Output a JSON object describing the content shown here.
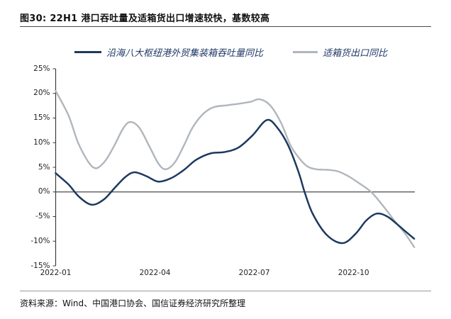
{
  "figure": {
    "title": "图30: 22H1 港口吞吐量及适箱货出口增速较快，基数较高",
    "source": "资料来源：Wind、中国港口协会、国信证券经济研究所整理"
  },
  "chart_data": {
    "type": "line",
    "title": "22H1 港口吞吐量及适箱货出口增速较快，基数较高",
    "legend_position": "top",
    "grid": false,
    "x_axis": {
      "unit": "months since 2022-01",
      "range": [
        0,
        10.85
      ],
      "ticks": [
        {
          "label": "2022-01",
          "m": 0
        },
        {
          "label": "2022-04",
          "m": 3
        },
        {
          "label": "2022-07",
          "m": 6
        },
        {
          "label": "2022-10",
          "m": 9
        }
      ]
    },
    "y_axis": {
      "range": [
        -15,
        25
      ],
      "ticks": [
        {
          "label": "25%",
          "v": 25
        },
        {
          "label": "20%",
          "v": 20
        },
        {
          "label": "15%",
          "v": 15
        },
        {
          "label": "10%",
          "v": 10
        },
        {
          "label": "5%",
          "v": 5
        },
        {
          "label": "0%",
          "v": 0
        },
        {
          "label": "-5%",
          "v": -5
        },
        {
          "label": "-10%",
          "v": -10
        },
        {
          "label": "-15%",
          "v": -15
        }
      ]
    },
    "series": [
      {
        "name": "沿海八大枢纽港外贸集装箱吞吐量同比",
        "color": "#1c3a5f",
        "stroke_width": 2.5,
        "points": [
          [
            0,
            3.8
          ],
          [
            0.39,
            1.5
          ],
          [
            0.71,
            -1.0
          ],
          [
            1.09,
            -2.6
          ],
          [
            1.46,
            -1.5
          ],
          [
            1.78,
            0.8
          ],
          [
            2.1,
            3.0
          ],
          [
            2.38,
            4.0
          ],
          [
            2.74,
            3.2
          ],
          [
            3.1,
            2.1
          ],
          [
            3.49,
            2.8
          ],
          [
            3.88,
            4.5
          ],
          [
            4.24,
            6.5
          ],
          [
            4.67,
            7.8
          ],
          [
            5.1,
            8.1
          ],
          [
            5.52,
            9.0
          ],
          [
            5.95,
            11.5
          ],
          [
            6.38,
            14.6
          ],
          [
            6.7,
            13.0
          ],
          [
            7.02,
            9.5
          ],
          [
            7.34,
            4.0
          ],
          [
            7.52,
            0.0
          ],
          [
            7.77,
            -4.5
          ],
          [
            8.2,
            -8.8
          ],
          [
            8.67,
            -10.4
          ],
          [
            9.06,
            -8.5
          ],
          [
            9.38,
            -5.8
          ],
          [
            9.7,
            -4.4
          ],
          [
            10.02,
            -5.0
          ],
          [
            10.34,
            -6.7
          ],
          [
            10.6,
            -8.2
          ],
          [
            10.83,
            -9.5
          ]
        ]
      },
      {
        "name": "适箱货出口同比",
        "color": "#b0b6bc",
        "stroke_width": 2.4,
        "points": [
          [
            0,
            20.5
          ],
          [
            0.39,
            15.5
          ],
          [
            0.71,
            9.5
          ],
          [
            1.13,
            5.0
          ],
          [
            1.46,
            6.0
          ],
          [
            1.78,
            9.5
          ],
          [
            2.03,
            12.8
          ],
          [
            2.25,
            14.2
          ],
          [
            2.53,
            13.0
          ],
          [
            2.85,
            9.0
          ],
          [
            3.1,
            5.8
          ],
          [
            3.32,
            4.6
          ],
          [
            3.6,
            6.0
          ],
          [
            3.88,
            9.5
          ],
          [
            4.13,
            13.0
          ],
          [
            4.45,
            15.8
          ],
          [
            4.77,
            17.2
          ],
          [
            5.2,
            17.6
          ],
          [
            5.63,
            18.0
          ],
          [
            5.89,
            18.3
          ],
          [
            6.17,
            18.8
          ],
          [
            6.49,
            17.5
          ],
          [
            6.81,
            14.0
          ],
          [
            7.09,
            9.5
          ],
          [
            7.34,
            7.0
          ],
          [
            7.6,
            5.2
          ],
          [
            7.88,
            4.6
          ],
          [
            8.2,
            4.5
          ],
          [
            8.52,
            4.2
          ],
          [
            8.84,
            3.2
          ],
          [
            9.16,
            1.8
          ],
          [
            9.53,
            0.0
          ],
          [
            9.91,
            -3.0
          ],
          [
            10.23,
            -5.8
          ],
          [
            10.56,
            -8.5
          ],
          [
            10.83,
            -11.2
          ]
        ]
      }
    ],
    "axis_color": "#3c3c3c",
    "zero_line_color": "#4a4a4a"
  }
}
